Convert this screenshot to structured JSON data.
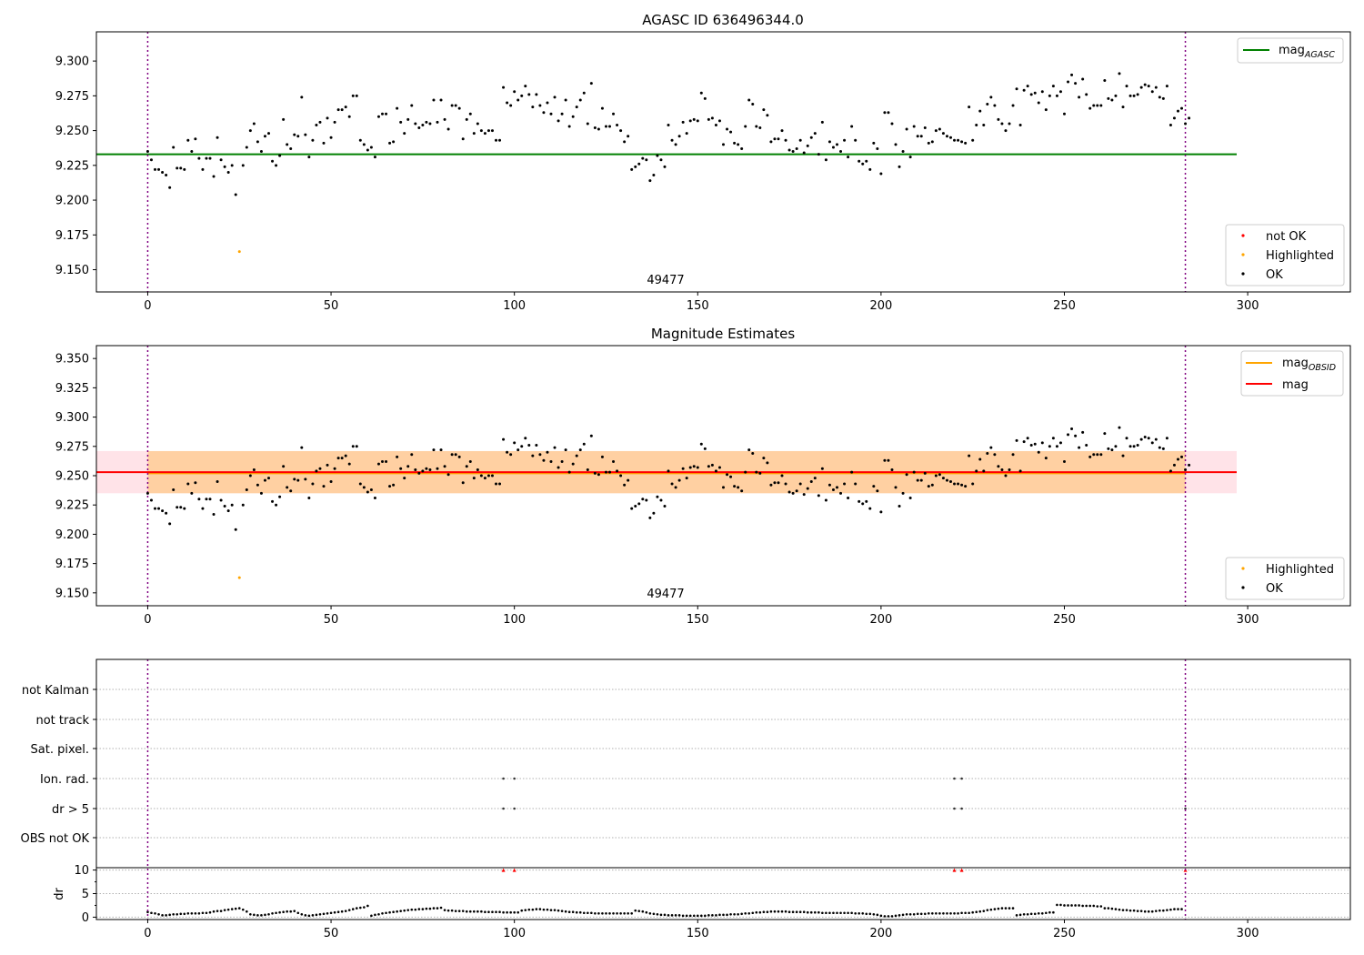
{
  "chart_data": [
    {
      "type": "scatter",
      "title": "AGASC ID 636496344.0",
      "annotation": "49477",
      "xlim": [
        -14,
        328
      ],
      "ylim": [
        9.134,
        9.321
      ],
      "xticks": [
        "0",
        "50",
        "100",
        "150",
        "200",
        "250",
        "300"
      ],
      "yticks": [
        "9.150",
        "9.175",
        "9.200",
        "9.225",
        "9.250",
        "9.275",
        "9.300"
      ],
      "obsid_boundaries": [
        0,
        283
      ],
      "lines": [
        {
          "name_main": "mag",
          "name_sub": "AGASC",
          "y": 9.233,
          "x_range": [
            -14,
            297
          ],
          "color": "#008000"
        }
      ],
      "legend_lines_position": "top-right",
      "legend_points": [
        "not OK",
        "Highlighted",
        "OK"
      ],
      "legend_points_position": "lower-right",
      "highlighted_points": [
        [
          25,
          9.163
        ]
      ],
      "point_colors": {
        "not OK": "#ff0000",
        "Highlighted": "#ffa500",
        "OK": "#000000"
      }
    },
    {
      "type": "scatter",
      "title": "Magnitude Estimates",
      "annotation": "49477",
      "xlim": [
        -14,
        328
      ],
      "ylim": [
        9.139,
        9.361
      ],
      "xticks": [
        "0",
        "50",
        "100",
        "150",
        "200",
        "250",
        "300"
      ],
      "yticks": [
        "9.150",
        "9.175",
        "9.200",
        "9.225",
        "9.250",
        "9.275",
        "9.300",
        "9.325",
        "9.350"
      ],
      "obsid_boundaries": [
        0,
        283
      ],
      "lines": [
        {
          "name_main": "mag",
          "name_sub": "OBSID",
          "y": 9.252,
          "x_range": [
            0,
            283
          ],
          "color": "#ffa500"
        },
        {
          "name_main": "mag",
          "name_sub": "",
          "y": 9.253,
          "x_range": [
            -14,
            297
          ],
          "color": "#ff0000"
        }
      ],
      "bands": [
        {
          "y_range": [
            9.235,
            9.271
          ],
          "x_range": [
            -14,
            297
          ],
          "color": "#ffc0cb"
        },
        {
          "y_range": [
            9.235,
            9.271
          ],
          "x_range": [
            0,
            283
          ],
          "color": "#ffa500"
        }
      ],
      "legend_lines_position": "top-right",
      "legend_points": [
        "Highlighted",
        "OK"
      ],
      "legend_points_position": "lower-right",
      "highlighted_points": [
        [
          25,
          9.163
        ]
      ]
    },
    {
      "type": "scatter",
      "title": "",
      "xlim": [
        -14,
        328
      ],
      "xticks": [
        "0",
        "50",
        "100",
        "150",
        "200",
        "250",
        "300"
      ],
      "flag_rows": [
        "not Kalman",
        "not track",
        "Sat. pixel.",
        "Ion. rad.",
        "dr > 5",
        "OBS not OK"
      ],
      "flag_points": {
        "Ion. rad.": [
          97,
          100,
          220,
          222,
          283
        ],
        "dr > 5": [
          97,
          100,
          220,
          222,
          283
        ]
      },
      "dr_ylabel": "dr",
      "dr_ylim": [
        -0.5,
        10.5
      ],
      "dr_yticks": [
        "0",
        "5",
        "10"
      ],
      "dr_clipped_points": [
        97,
        100,
        220,
        222,
        283
      ],
      "dr_segments": [
        {
          "x_range": [
            0,
            4
          ],
          "values": [
            1.1,
            0.9,
            0.8,
            0.6,
            0.4
          ]
        },
        {
          "x_range": [
            5,
            25
          ],
          "values": [
            0.4,
            0.5,
            0.6,
            0.6,
            0.7,
            0.7,
            0.8,
            0.8,
            0.8,
            0.8,
            0.9,
            0.9,
            1.0,
            1.2,
            1.3,
            1.3,
            1.5,
            1.6,
            1.7,
            1.8,
            1.9
          ]
        },
        {
          "x_range": [
            26,
            40
          ],
          "values": [
            1.6,
            1.2,
            0.6,
            0.5,
            0.4,
            0.4,
            0.5,
            0.6,
            0.8,
            0.9,
            1.0,
            1.1,
            1.2,
            1.2,
            1.3
          ]
        },
        {
          "x_range": [
            41,
            60
          ],
          "values": [
            0.9,
            0.6,
            0.4,
            0.3,
            0.4,
            0.5,
            0.6,
            0.7,
            0.8,
            0.9,
            1.0,
            1.1,
            1.2,
            1.3,
            1.5,
            1.7,
            1.9,
            2.0,
            2.1,
            2.4
          ]
        },
        {
          "x_range": [
            61,
            80
          ],
          "values": [
            0.3,
            0.5,
            0.6,
            0.8,
            0.9,
            1.0,
            1.1,
            1.2,
            1.3,
            1.4,
            1.5,
            1.6,
            1.6,
            1.7,
            1.7,
            1.8,
            1.8,
            1.9,
            1.9,
            2.0
          ]
        },
        {
          "x_range": [
            81,
            132
          ],
          "values": [
            1.5,
            1.4,
            1.4,
            1.3,
            1.3,
            1.3,
            1.2,
            1.2,
            1.2,
            1.2,
            1.2,
            1.1,
            1.1,
            1.1,
            1.1,
            1.1,
            1.0,
            1.0,
            1.0,
            1.0,
            1.0,
            1.4,
            1.5,
            1.6,
            1.6,
            1.7,
            1.7,
            1.6,
            1.6,
            1.5,
            1.5,
            1.4,
            1.3,
            1.2,
            1.1,
            1.1,
            1.0,
            1.0,
            0.9,
            0.9,
            0.9,
            0.8,
            0.8,
            0.8,
            0.8,
            0.8,
            0.8,
            0.8,
            0.8,
            0.8,
            0.8,
            0.8
          ]
        },
        {
          "x_range": [
            133,
            172
          ],
          "values": [
            1.4,
            1.3,
            1.2,
            1.0,
            0.8,
            0.7,
            0.6,
            0.5,
            0.5,
            0.4,
            0.4,
            0.4,
            0.4,
            0.3,
            0.3,
            0.3,
            0.3,
            0.3,
            0.3,
            0.3,
            0.4,
            0.4,
            0.4,
            0.5,
            0.5,
            0.5,
            0.6,
            0.6,
            0.6,
            0.7,
            0.8,
            0.8,
            0.9,
            1.0,
            1.0,
            1.1,
            1.1,
            1.2,
            1.2,
            1.2
          ]
        },
        {
          "x_range": [
            173,
            199
          ],
          "values": [
            1.2,
            1.2,
            1.1,
            1.1,
            1.1,
            1.1,
            1.1,
            1.0,
            1.0,
            1.0,
            1.0,
            0.9,
            0.9,
            0.9,
            0.9,
            0.9,
            0.9,
            0.9,
            0.9,
            0.9,
            0.8,
            0.8,
            0.8,
            0.7,
            0.7,
            0.6,
            0.5
          ]
        },
        {
          "x_range": [
            200,
            236
          ],
          "values": [
            0.3,
            0.2,
            0.2,
            0.2,
            0.3,
            0.4,
            0.5,
            0.6,
            0.6,
            0.6,
            0.7,
            0.7,
            0.7,
            0.8,
            0.8,
            0.8,
            0.8,
            0.8,
            0.8,
            0.8,
            0.8,
            0.8,
            0.9,
            0.9,
            0.9,
            1.0,
            1.1,
            1.2,
            1.3,
            1.5,
            1.6,
            1.7,
            1.8,
            1.9,
            1.9,
            1.9,
            1.9
          ]
        },
        {
          "x_range": [
            237,
            247
          ],
          "values": [
            0.4,
            0.5,
            0.6,
            0.6,
            0.7,
            0.7,
            0.8,
            0.8,
            0.9,
            1.0,
            1.0
          ]
        },
        {
          "x_range": [
            248,
            260
          ],
          "values": [
            2.6,
            2.6,
            2.5,
            2.5,
            2.5,
            2.5,
            2.5,
            2.4,
            2.4,
            2.4,
            2.4,
            2.3,
            2.3
          ]
        },
        {
          "x_range": [
            261,
            282
          ],
          "values": [
            1.9,
            1.9,
            1.8,
            1.7,
            1.6,
            1.5,
            1.5,
            1.4,
            1.4,
            1.3,
            1.3,
            1.2,
            1.2,
            1.2,
            1.3,
            1.4,
            1.4,
            1.5,
            1.6,
            1.7,
            1.7,
            1.7
          ]
        }
      ]
    }
  ],
  "mag_series": {
    "ok_segments": [
      {
        "x_range": [
          0,
          24
        ],
        "values": [
          9.235,
          9.229,
          9.222,
          9.222,
          9.22,
          9.218,
          9.209,
          9.238,
          9.223,
          9.223,
          9.222,
          9.243,
          9.235,
          9.244,
          9.23,
          9.222,
          9.23,
          9.23,
          9.217,
          9.245,
          9.229,
          9.224,
          9.22,
          9.225,
          9.204
        ]
      },
      {
        "x_range": [
          26,
          45
        ],
        "values": [
          9.225,
          9.238,
          9.25,
          9.255,
          9.242,
          9.235,
          9.246,
          9.248,
          9.228,
          9.225,
          9.232,
          9.258,
          9.24,
          9.237,
          9.247,
          9.246,
          9.274,
          9.247,
          9.231,
          9.243
        ]
      },
      {
        "x_range": [
          46,
          60
        ],
        "values": [
          9.254,
          9.256,
          9.241,
          9.259,
          9.245,
          9.256,
          9.265,
          9.265,
          9.267,
          9.26,
          9.275,
          9.275,
          9.243,
          9.24,
          9.236
        ]
      },
      {
        "x_range": [
          61,
          80
        ],
        "values": [
          9.238,
          9.231,
          9.26,
          9.262,
          9.262,
          9.241,
          9.242,
          9.266,
          9.256,
          9.248,
          9.258,
          9.268,
          9.255,
          9.252,
          9.254,
          9.256,
          9.255,
          9.272,
          9.256,
          9.272
        ]
      },
      {
        "x_range": [
          81,
          100
        ],
        "values": [
          9.258,
          9.251,
          9.268,
          9.268,
          9.266,
          9.244,
          9.258,
          9.262,
          9.248,
          9.255,
          9.25,
          9.248,
          9.25,
          9.25,
          9.243,
          9.243,
          9.281,
          9.27,
          9.268,
          9.278
        ]
      },
      {
        "x_range": [
          101,
          120
        ],
        "values": [
          9.272,
          9.275,
          9.282,
          9.276,
          9.267,
          9.276,
          9.268,
          9.263,
          9.27,
          9.262,
          9.274,
          9.257,
          9.262,
          9.272,
          9.253,
          9.26,
          9.267,
          9.272,
          9.277,
          9.255
        ]
      },
      {
        "x_range": [
          121,
          132
        ],
        "values": [
          9.284,
          9.252,
          9.251,
          9.266,
          9.253,
          9.253,
          9.262,
          9.254,
          9.25,
          9.242,
          9.246,
          9.222
        ]
      },
      {
        "x_range": [
          133,
          152
        ],
        "values": [
          9.224,
          9.226,
          9.23,
          9.229,
          9.214,
          9.218,
          9.232,
          9.229,
          9.224,
          9.254,
          9.243,
          9.24,
          9.246,
          9.256,
          9.248,
          9.257,
          9.258,
          9.257,
          9.277,
          9.273
        ]
      },
      {
        "x_range": [
          153,
          172
        ],
        "values": [
          9.258,
          9.259,
          9.254,
          9.257,
          9.24,
          9.251,
          9.249,
          9.241,
          9.24,
          9.237,
          9.253,
          9.272,
          9.269,
          9.253,
          9.252,
          9.265,
          9.261,
          9.242,
          9.244,
          9.244
        ]
      },
      {
        "x_range": [
          173,
          192
        ],
        "values": [
          9.25,
          9.243,
          9.236,
          9.235,
          9.237,
          9.243,
          9.234,
          9.239,
          9.245,
          9.248,
          9.233,
          9.256,
          9.229,
          9.242,
          9.238,
          9.24,
          9.235,
          9.243,
          9.231,
          9.253
        ]
      },
      {
        "x_range": [
          193,
          212
        ],
        "values": [
          9.243,
          9.228,
          9.226,
          9.228,
          9.222,
          9.241,
          9.237,
          9.219,
          9.263,
          9.263,
          9.255,
          9.24,
          9.224,
          9.235,
          9.251,
          9.231,
          9.253,
          9.246,
          9.246,
          9.252
        ]
      },
      {
        "x_range": [
          213,
          232
        ],
        "values": [
          9.241,
          9.242,
          9.25,
          9.251,
          9.248,
          9.246,
          9.245,
          9.243,
          9.243,
          9.242,
          9.241,
          9.267,
          9.243,
          9.254,
          9.264,
          9.254,
          9.269,
          9.274,
          9.268,
          9.258
        ]
      },
      {
        "x_range": [
          233,
          252
        ],
        "values": [
          9.255,
          9.25,
          9.255,
          9.268,
          9.28,
          9.254,
          9.279,
          9.282,
          9.276,
          9.277,
          9.27,
          9.278,
          9.265,
          9.275,
          9.282,
          9.275,
          9.278,
          9.262,
          9.285,
          9.29
        ]
      },
      {
        "x_range": [
          253,
          272
        ],
        "values": [
          9.284,
          9.274,
          9.287,
          9.276,
          9.266,
          9.268,
          9.268,
          9.268,
          9.286,
          9.273,
          9.272,
          9.275,
          9.291,
          9.267,
          9.282,
          9.275,
          9.275,
          9.276,
          9.281,
          9.283
        ]
      },
      {
        "x_range": [
          273,
          284
        ],
        "values": [
          9.282,
          9.278,
          9.281,
          9.274,
          9.273,
          9.282,
          9.254,
          9.259,
          9.264,
          9.266,
          9.255,
          9.259
        ]
      }
    ]
  }
}
